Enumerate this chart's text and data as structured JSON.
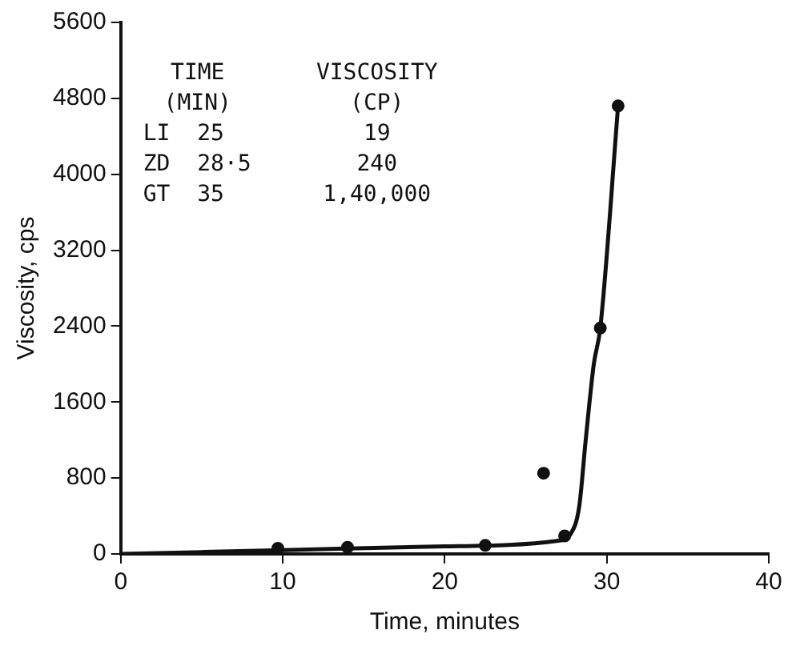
{
  "chart_data": {
    "type": "scatter",
    "xlabel": "Time, minutes",
    "ylabel": "Viscosity, cps",
    "xlim": [
      0,
      40
    ],
    "xticks": [
      0,
      10,
      20,
      30,
      40
    ],
    "ylim": [
      0,
      5600
    ],
    "yticks": [
      0,
      800,
      1600,
      2400,
      3200,
      4000,
      4800,
      5600
    ],
    "grid": false,
    "legend": false,
    "series": [
      {
        "color": "#111111",
        "marker": "circle",
        "x": [
          9.7,
          14,
          22.5,
          26.1,
          27.4,
          29.6,
          30.7
        ],
        "values": [
          60,
          70,
          90,
          850,
          190,
          2380,
          4720
        ]
      },
      {
        "type": "line",
        "color": "#111111",
        "marker": "none",
        "line_style": "solid",
        "x": [
          0,
          10,
          20,
          27,
          27.8,
          28.3,
          28.7,
          29.2,
          29.6,
          30.7
        ],
        "values": [
          0,
          40,
          80,
          140,
          220,
          500,
          1200,
          2000,
          2380,
          4720
        ]
      }
    ],
    "annotations": [
      "TIME",
      "VISCOSITY",
      "(MIN)",
      "(CP)",
      "LI  25",
      "19",
      "ZD  28·5",
      "240",
      "GT  35",
      "1,40,000"
    ]
  }
}
